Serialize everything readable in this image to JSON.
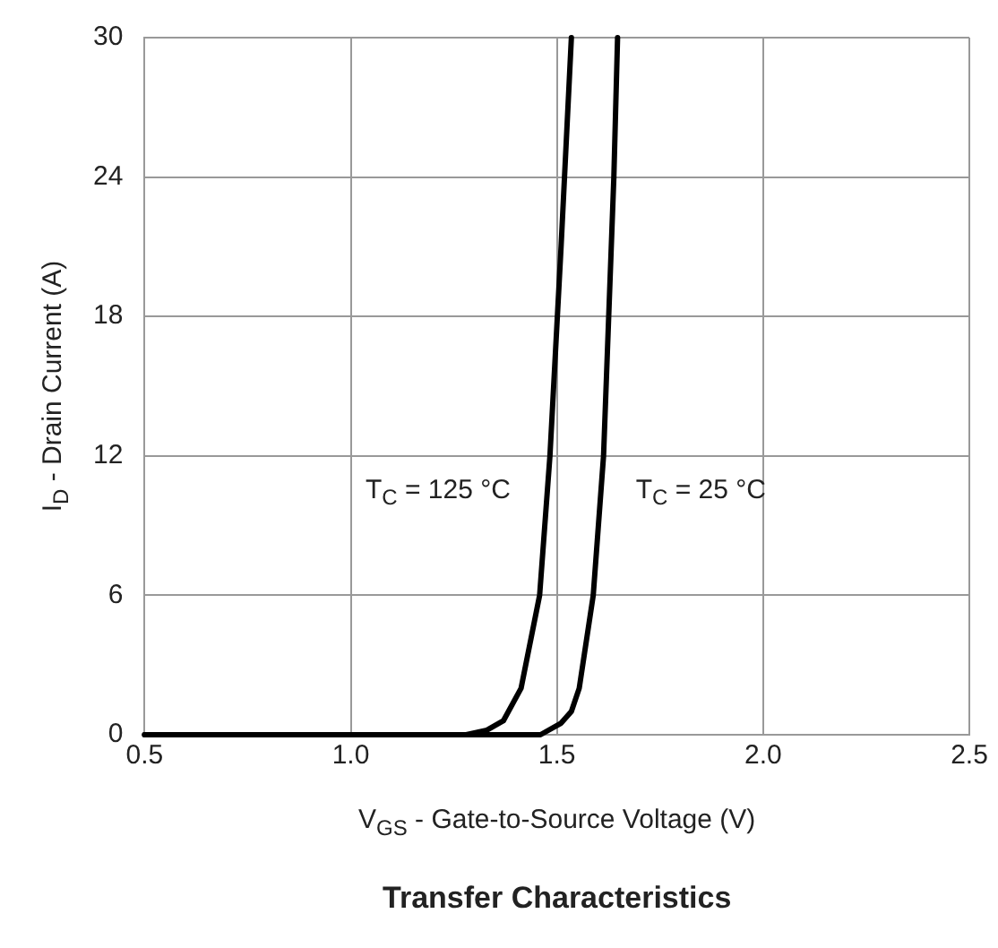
{
  "chart_data": {
    "type": "line",
    "title": "Transfer Characteristics",
    "xlabel": "V$_{GS}$ - Gate-to-Source Voltage (V)",
    "ylabel": "I$_{D}$ - Drain Current (A)",
    "series": [
      {
        "name": "T$_{C}$ = 125 °C",
        "color": "#000000",
        "x": [
          0.5,
          1.28,
          1.33,
          1.37,
          1.413,
          1.458,
          1.483,
          1.51,
          1.535
        ],
        "values": [
          0,
          0,
          0.2,
          0.6,
          2,
          6,
          12,
          21,
          30
        ]
      },
      {
        "name": "T$_{C}$ = 25 °C",
        "color": "#000000",
        "x": [
          0.5,
          1.46,
          1.51,
          1.535,
          1.554,
          1.588,
          1.613,
          1.638,
          1.647
        ],
        "values": [
          0,
          0,
          0.5,
          1,
          2,
          6,
          12,
          24,
          30
        ]
      }
    ],
    "xlim": [
      0.5,
      2.5
    ],
    "xticks": [
      0.5,
      {
        "value": 1,
        "label": "1.0"
      },
      1.5,
      {
        "value": 2,
        "label": "2.0"
      },
      2.5
    ],
    "ylim": [
      0,
      30
    ],
    "yticks": [
      0,
      6,
      12,
      18,
      24,
      30
    ],
    "grid": true,
    "marker": "none",
    "line_style": "solid",
    "legend": false
  }
}
